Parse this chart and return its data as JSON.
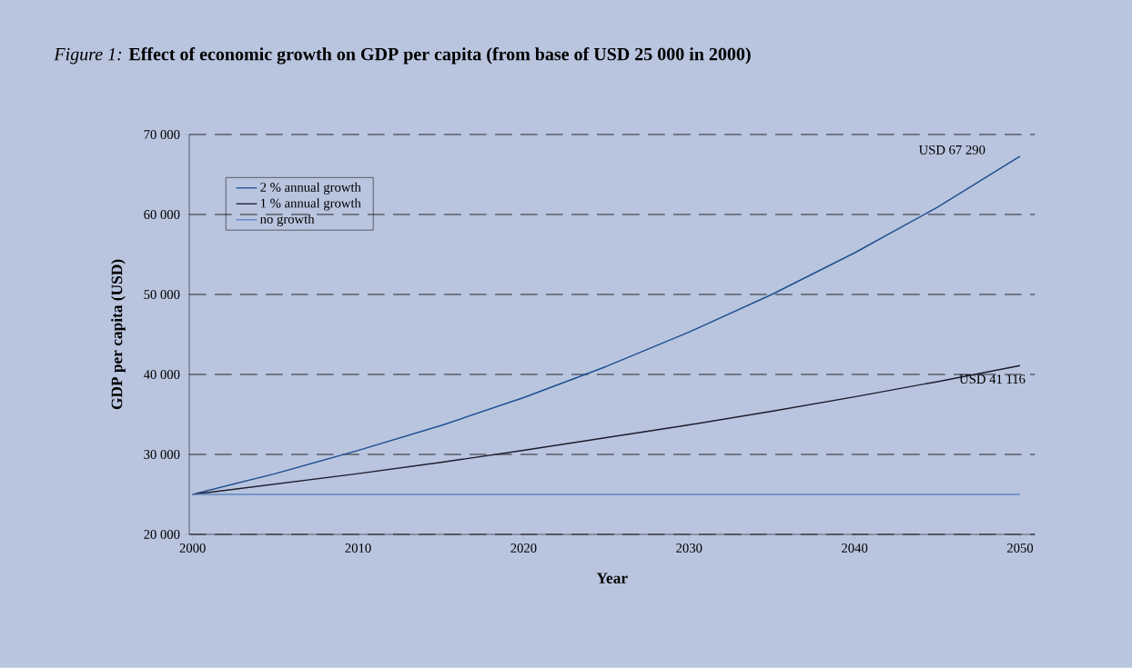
{
  "chart_data": {
    "type": "line",
    "title": "*Figure 1:*    **Effect of economic growth on GDP per capita (from base of USD 25 000 in 2000)**",
    "xlabel": "Year",
    "ylabel": "GDP per capita (USD)",
    "x": [
      2000,
      2005,
      2010,
      2015,
      2020,
      2025,
      2030,
      2035,
      2040,
      2045,
      2050
    ],
    "series": [
      {
        "name": "2 % annual growth",
        "color": "#1f4f8f",
        "values": [
          25000,
          27600,
          30500,
          33600,
          37100,
          41000,
          45300,
          50000,
          55200,
          60900,
          67290
        ]
      },
      {
        "name": "1 % annual growth",
        "color": "#1c1c2c",
        "values": [
          25000,
          26300,
          27600,
          29000,
          30500,
          32100,
          33700,
          35400,
          37200,
          39100,
          41116
        ]
      },
      {
        "name": "no growth",
        "color": "#5f84c2",
        "values": [
          25000,
          25000,
          25000,
          25000,
          25000,
          25000,
          25000,
          25000,
          25000,
          25000,
          25000
        ]
      }
    ],
    "xlim": [
      1999.8,
      2050.9
    ],
    "ylim": [
      20000,
      70000
    ],
    "xticks": [
      2000,
      2010,
      2020,
      2030,
      2040,
      2050
    ],
    "yticks": [
      {
        "value": 20000,
        "label": "20 000"
      },
      {
        "value": 30000,
        "label": "30 000"
      },
      {
        "value": 40000,
        "label": "40 000"
      },
      {
        "value": 50000,
        "label": "50 000"
      },
      {
        "value": 60000,
        "label": "60 000"
      },
      {
        "value": 70000,
        "label": "70 000"
      }
    ],
    "grid": "y",
    "legend": "top left",
    "line_style": "solid",
    "marker": "none",
    "annotations": [
      {
        "text": "USD 67 290",
        "x": 2050,
        "y": 67290
      },
      {
        "text": "USD 41 116",
        "x": 2050,
        "y": 41116
      }
    ]
  }
}
